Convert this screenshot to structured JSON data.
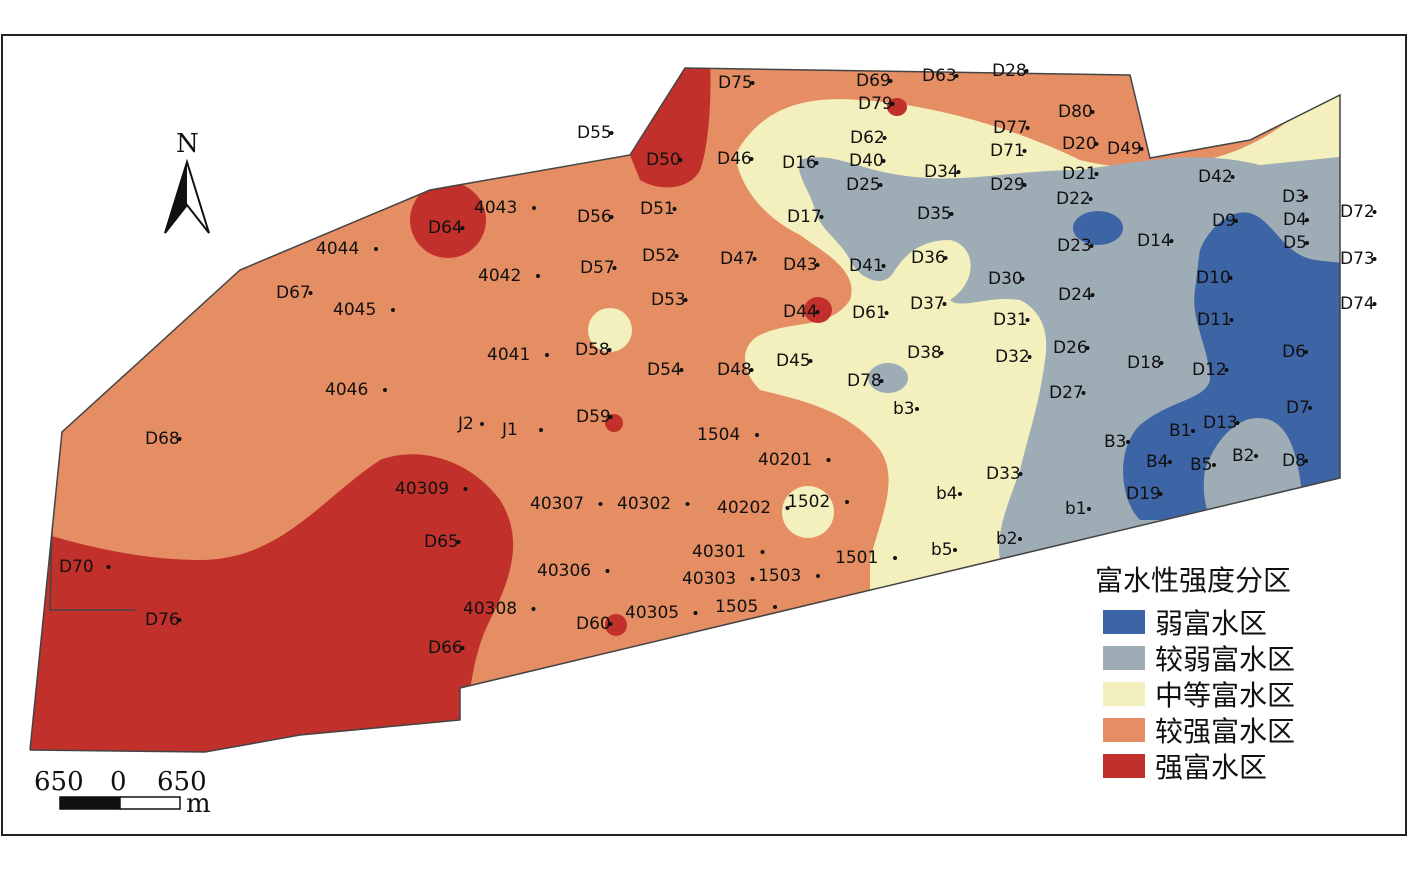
{
  "map": {
    "north_label": "N",
    "scale": {
      "left": "650",
      "mid": "0",
      "right": "650",
      "unit": "m"
    },
    "colors": {
      "weak": "#3d65a5",
      "fairly_weak": "#9eacb6",
      "medium": "#f3f0bd",
      "fairly_strong": "#e58d63",
      "strong": "#c1302a"
    }
  },
  "legend": {
    "title": "富水性强度分区",
    "items": [
      {
        "label": "弱富水区",
        "color": "#3d65a5"
      },
      {
        "label": "较弱富水区",
        "color": "#9eacb6"
      },
      {
        "label": "中等富水区",
        "color": "#f3f0bd"
      },
      {
        "label": "较强富水区",
        "color": "#e58d63"
      },
      {
        "label": "强富水区",
        "color": "#c1302a"
      }
    ]
  },
  "points": [
    "D75",
    "D69",
    "D63",
    "D28",
    "D79",
    "D55",
    "D50",
    "D46",
    "D62",
    "D77",
    "D80",
    "D20",
    "D49",
    "D71",
    "D16",
    "D40",
    "D25",
    "D34",
    "D29",
    "D21",
    "D22",
    "D42",
    "D3",
    "D72",
    "4043",
    "D56",
    "D51",
    "D64",
    "D17",
    "D35",
    "D4",
    "D9",
    "D5",
    "4044",
    "D23",
    "D14",
    "D73",
    "4042",
    "D57",
    "D52",
    "D47",
    "D43",
    "D41",
    "D36",
    "D30",
    "D10",
    "D67",
    "D53",
    "D24",
    "D74",
    "4045",
    "D44",
    "D61",
    "D37",
    "D31",
    "D11",
    "4041",
    "D58",
    "D26",
    "D6",
    "D54",
    "D48",
    "D45",
    "D38",
    "D32",
    "D18",
    "D12",
    "4046",
    "D78",
    "D27",
    "b3",
    "D7",
    "D59",
    "J2",
    "J1",
    "D13",
    "D68",
    "1504",
    "B3",
    "B1",
    "40201",
    "B4",
    "B5",
    "B2",
    "D8",
    "D33",
    "40309",
    "b4",
    "D19",
    "40307",
    "40302",
    "40202",
    "1502",
    "b1",
    "D65",
    "b2",
    "40301",
    "1501",
    "b5",
    "D70",
    "40306",
    "40303",
    "1503",
    "40308",
    "1505",
    "40305",
    "D60",
    "D76",
    "D66"
  ]
}
